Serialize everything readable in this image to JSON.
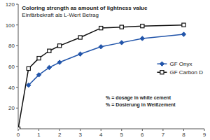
{
  "chart_data": {
    "type": "line",
    "title": "Coloring strength as amount of lightness value",
    "subtitle": "Einfärbekraft als L-Wert Betrag",
    "annotations": [
      "% = dosage in white cement",
      "% = Dosierung in Weißzement"
    ],
    "xlim": [
      0,
      9
    ],
    "ylim": [
      0,
      120
    ],
    "xticks": [
      0,
      1,
      2,
      3,
      4,
      5,
      6,
      7,
      8,
      9
    ],
    "yticks": [
      20,
      40,
      60,
      80,
      100,
      120
    ],
    "grid": false,
    "legend": "right",
    "series": [
      {
        "name": "GF Onyx",
        "color": "#2255aa",
        "marker": "diamond",
        "x": [
          0.5,
          1.0,
          1.5,
          2.0,
          3.0,
          4.0,
          5.0,
          6.0,
          8.0
        ],
        "values": [
          42,
          52,
          59,
          64,
          72,
          79,
          83,
          87,
          91
        ]
      },
      {
        "name": "GF Carbon D",
        "color": "#111111",
        "marker": "square",
        "x": [
          0.0,
          0.5,
          1.0,
          1.5,
          2.0,
          3.0,
          4.0,
          5.0,
          6.0,
          8.0
        ],
        "values": [
          0,
          58,
          68,
          75,
          80,
          88,
          97,
          98,
          99,
          100
        ]
      }
    ]
  }
}
